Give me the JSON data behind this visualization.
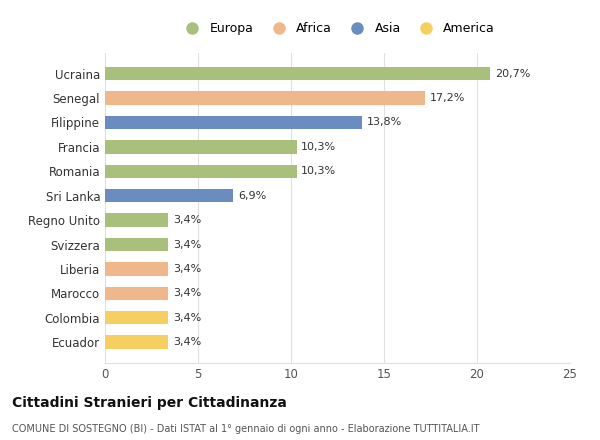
{
  "categories": [
    "Ucraina",
    "Senegal",
    "Filippine",
    "Francia",
    "Romania",
    "Sri Lanka",
    "Regno Unito",
    "Svizzera",
    "Liberia",
    "Marocco",
    "Colombia",
    "Ecuador"
  ],
  "values": [
    20.7,
    17.2,
    13.8,
    10.3,
    10.3,
    6.9,
    3.4,
    3.4,
    3.4,
    3.4,
    3.4,
    3.4
  ],
  "labels": [
    "20,7%",
    "17,2%",
    "13,8%",
    "10,3%",
    "10,3%",
    "6,9%",
    "3,4%",
    "3,4%",
    "3,4%",
    "3,4%",
    "3,4%",
    "3,4%"
  ],
  "colors": [
    "#a8c07c",
    "#f0b88a",
    "#6b8cbf",
    "#a8c07c",
    "#a8c07c",
    "#6b8cbf",
    "#a8c07c",
    "#a8c07c",
    "#f0b88a",
    "#f0b88a",
    "#f5d060",
    "#f5d060"
  ],
  "legend_labels": [
    "Europa",
    "Africa",
    "Asia",
    "America"
  ],
  "legend_colors": [
    "#a8c07c",
    "#f0b88a",
    "#6b8cbf",
    "#f5d060"
  ],
  "title": "Cittadini Stranieri per Cittadinanza",
  "subtitle": "COMUNE DI SOSTEGNO (BI) - Dati ISTAT al 1° gennaio di ogni anno - Elaborazione TUTTITALIA.IT",
  "xlim": [
    0,
    25
  ],
  "xticks": [
    0,
    5,
    10,
    15,
    20,
    25
  ],
  "background_color": "#ffffff",
  "grid_color": "#e0e0e0"
}
